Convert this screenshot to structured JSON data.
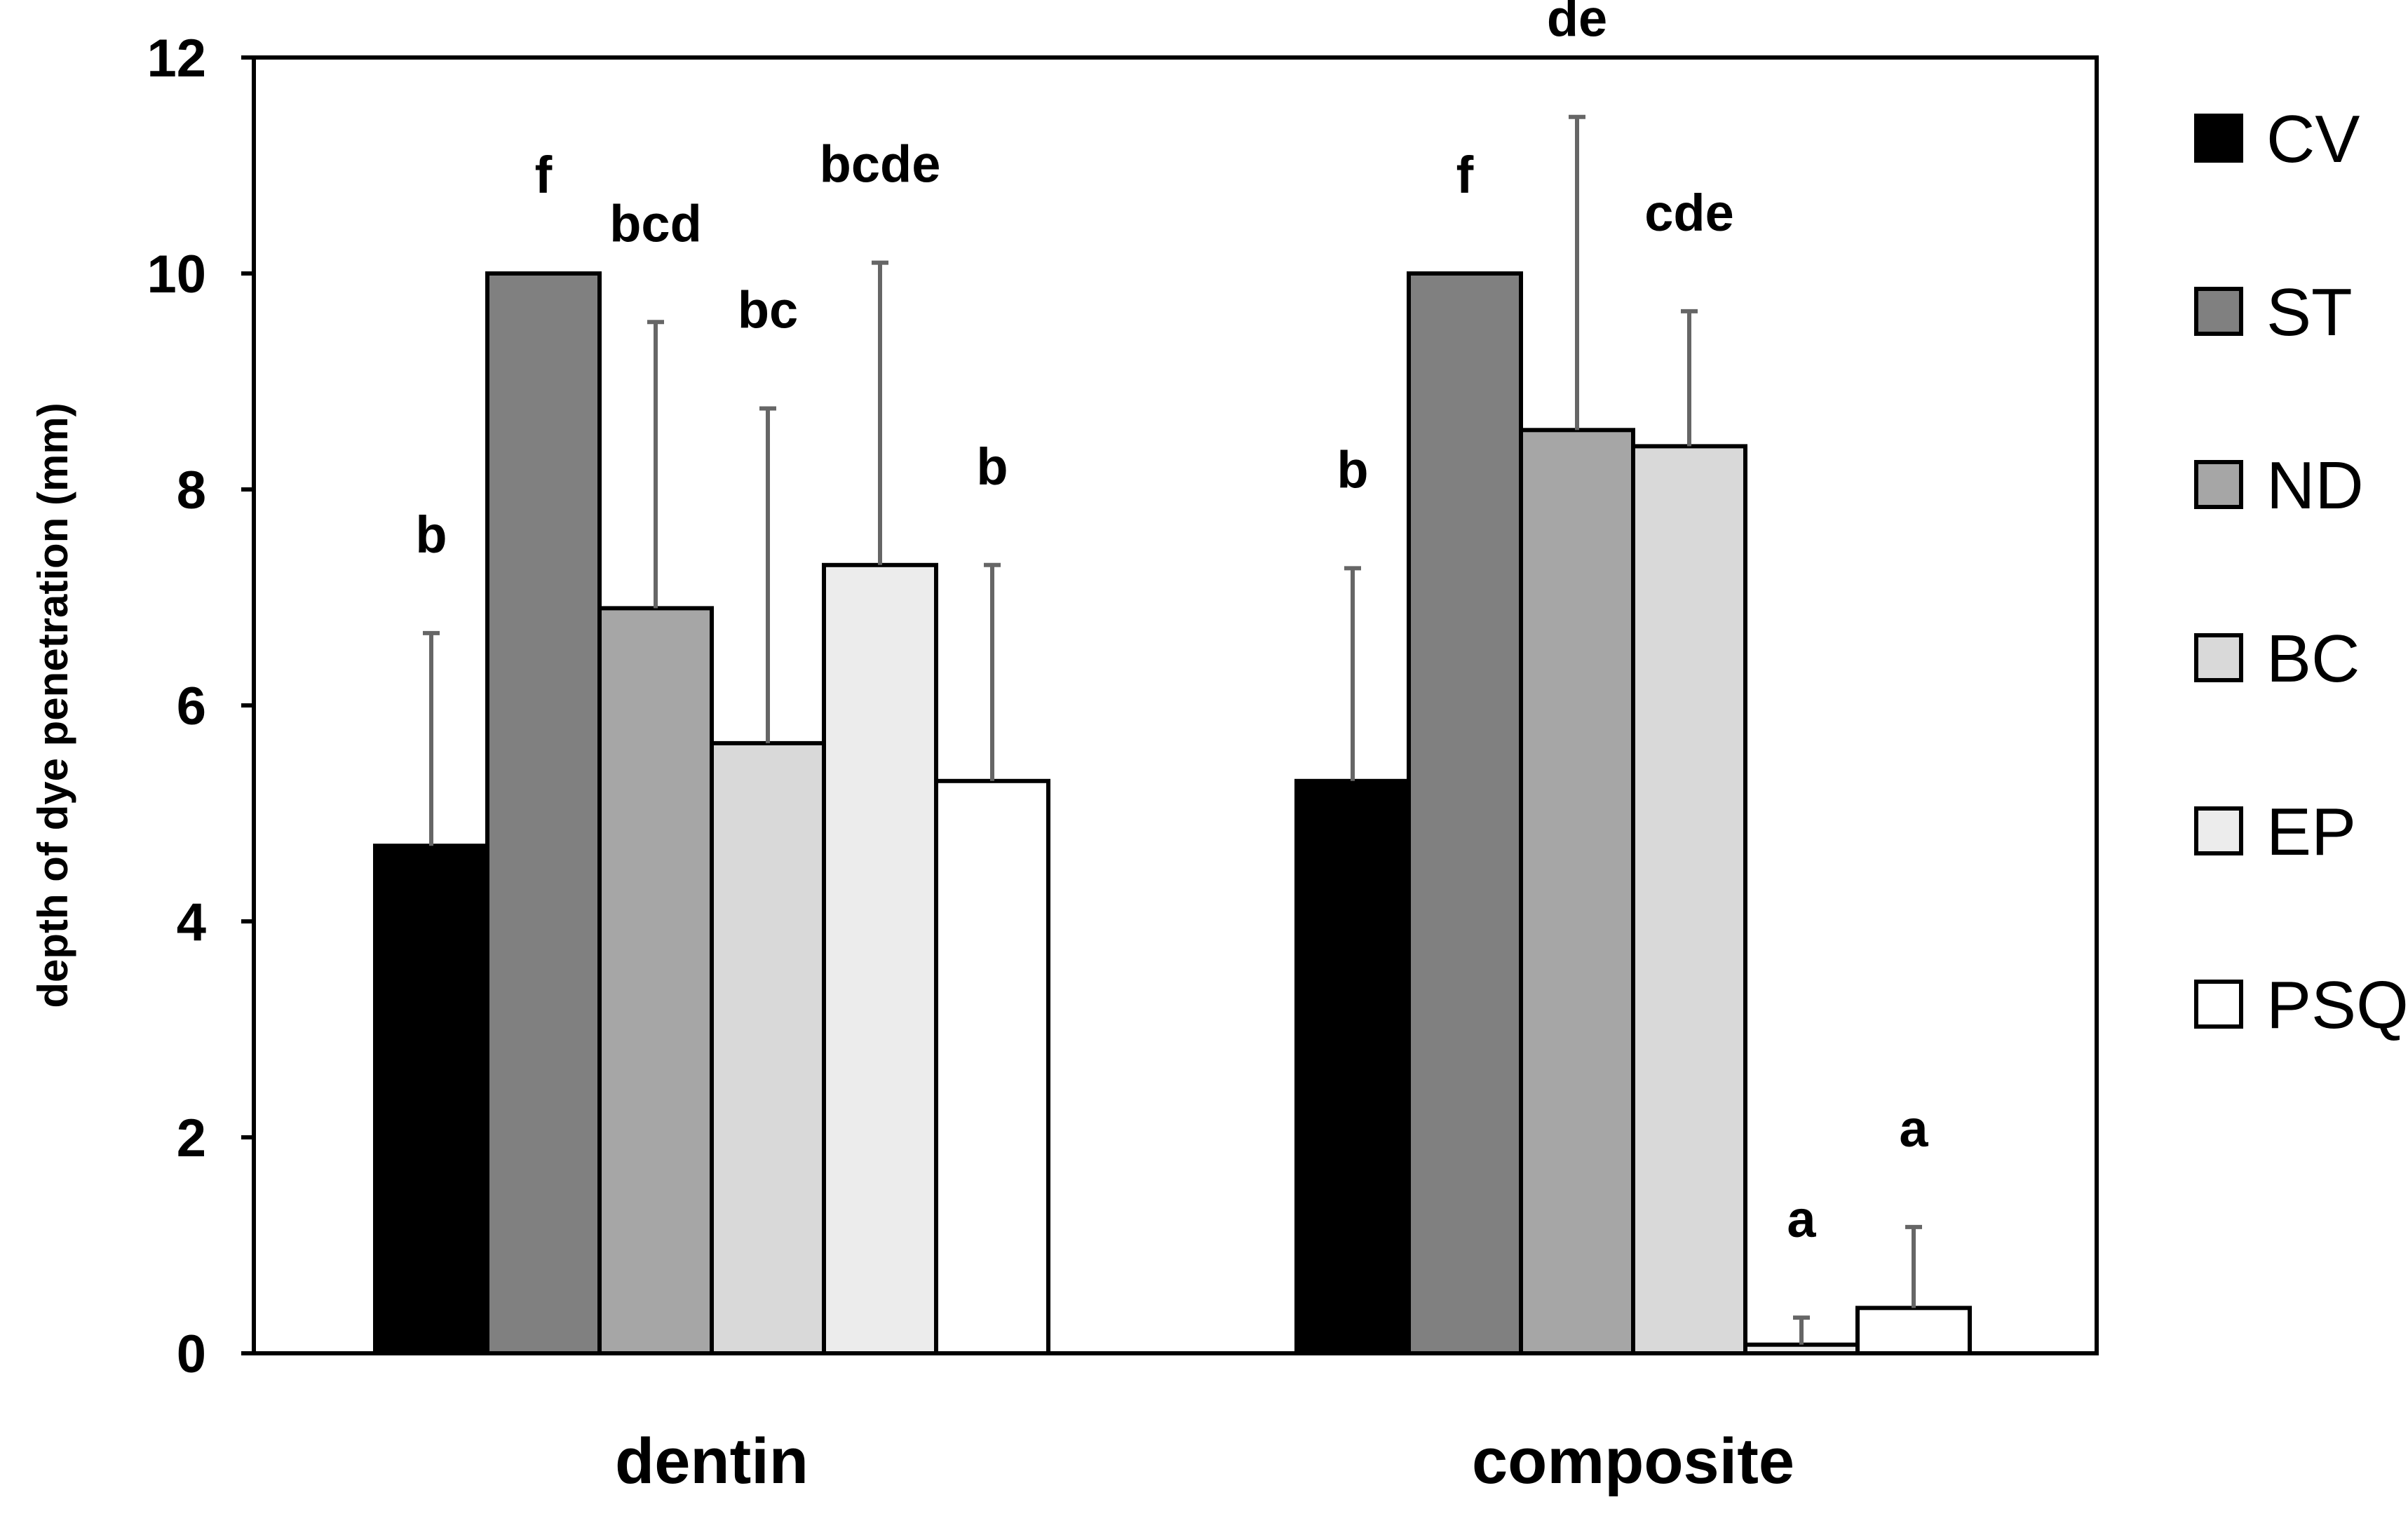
{
  "chart_data": {
    "type": "bar",
    "title": "",
    "xlabel": "",
    "ylabel": "depth of dye penetration (mm)",
    "ylim": [
      0,
      12
    ],
    "yticks": [
      0,
      2,
      4,
      6,
      8,
      10,
      12
    ],
    "categories": [
      "dentin",
      "composite"
    ],
    "grid": false,
    "legend_position": "right",
    "series": [
      {
        "name": "CV",
        "color": "#000000",
        "values": [
          4.7,
          5.3
        ],
        "errors": [
          1.97,
          1.97
        ],
        "labels": [
          "b",
          "b"
        ]
      },
      {
        "name": "ST",
        "color": "#808080",
        "values": [
          10.0,
          10.0
        ],
        "errors": [
          0,
          0
        ],
        "labels": [
          "f",
          "f"
        ]
      },
      {
        "name": "ND",
        "color": "#a6a6a6",
        "values": [
          6.9,
          8.55
        ],
        "errors": [
          2.65,
          2.9
        ],
        "labels": [
          "bcd",
          "de"
        ]
      },
      {
        "name": "BC",
        "color": "#d9d9d9",
        "values": [
          5.65,
          8.4
        ],
        "errors": [
          3.1,
          1.25
        ],
        "labels": [
          "bc",
          "cde"
        ]
      },
      {
        "name": "EP",
        "color": "#ececec",
        "values": [
          7.3,
          0.08
        ],
        "errors": [
          2.8,
          0.25
        ],
        "labels": [
          "bcde",
          "a"
        ]
      },
      {
        "name": "PSQ",
        "color": "#ffffff",
        "values": [
          5.3,
          0.42
        ],
        "errors": [
          2.0,
          0.75
        ],
        "labels": [
          "b",
          "a"
        ]
      }
    ]
  }
}
